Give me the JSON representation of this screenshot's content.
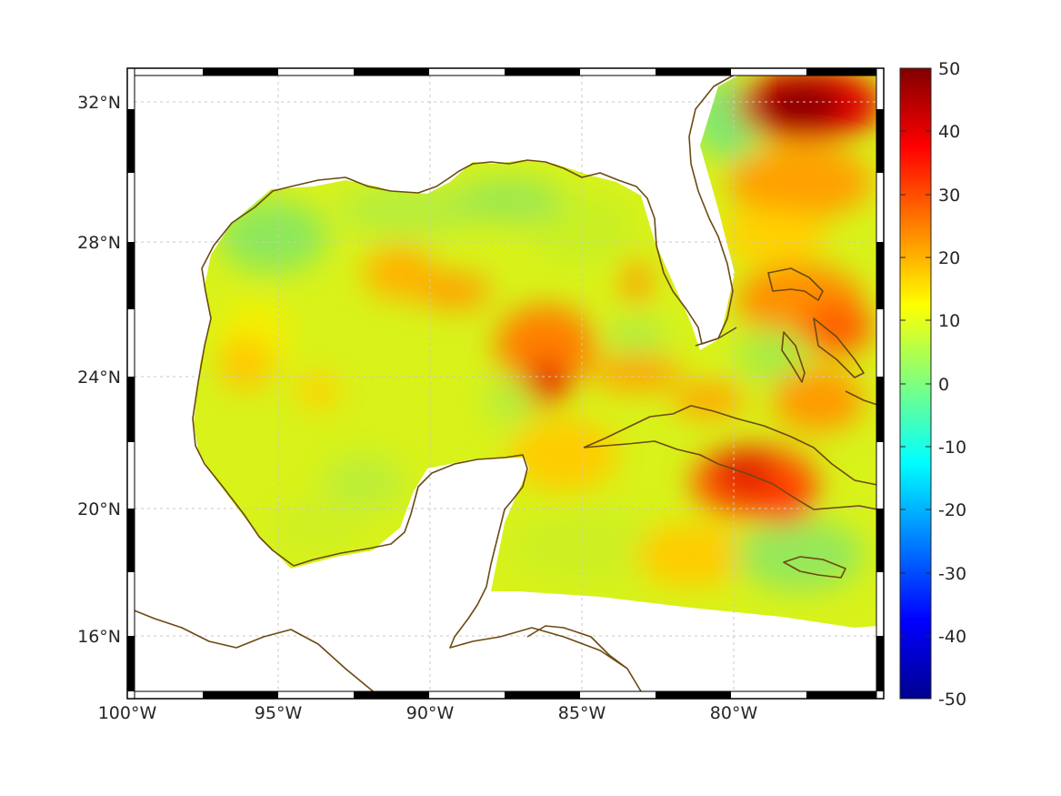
{
  "map": {
    "lon_labels": [
      "100°W",
      "95°W",
      "90°W",
      "85°W",
      "80°W"
    ],
    "lat_labels": [
      "32°N",
      "28°N",
      "24°N",
      "20°N",
      "16°N"
    ],
    "lon_values": [
      -100,
      -95,
      -90,
      -85,
      -80
    ],
    "lat_values": [
      32,
      28,
      24,
      20,
      16
    ],
    "lon_range": [
      -100,
      -75
    ],
    "lat_range": [
      14.2,
      32.9
    ],
    "grid": true,
    "frame": "black-white dashed"
  },
  "colorbar": {
    "tick_labels": [
      "50",
      "40",
      "30",
      "20",
      "10",
      "0",
      "-10",
      "-20",
      "-30",
      "-40",
      "-50"
    ],
    "range": [
      -50,
      50
    ],
    "colormap": "jet"
  },
  "colors": {
    "coastline": "#6b4a12",
    "jet_stops": [
      "#00008f",
      "#0000ff",
      "#00ffff",
      "#ffff00",
      "#ff0000",
      "#800000"
    ]
  }
}
